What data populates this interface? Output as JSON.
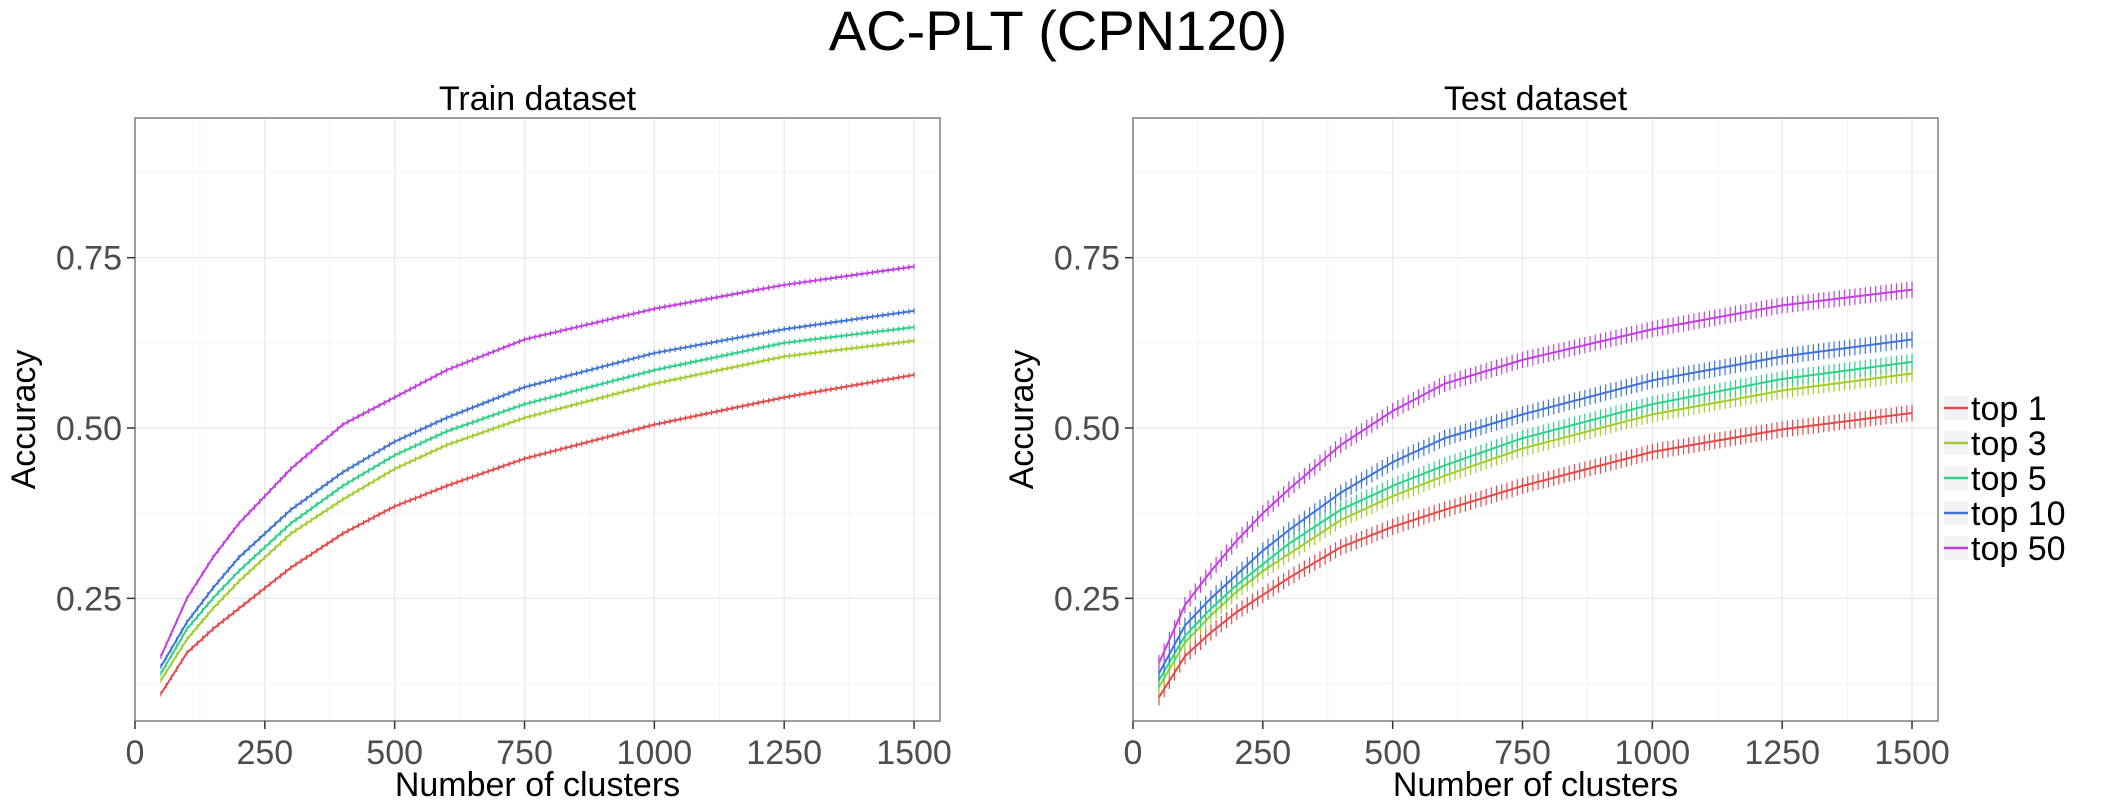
{
  "title": "AC-PLT (CPN120)",
  "colors": {
    "top 1": "#E34A4A",
    "top 3": "#A3CC2E",
    "top 5": "#2ED08A",
    "top 10": "#3F74D6",
    "top 50": "#C240E0",
    "grid": "#ebebeb",
    "panel_border": "#7f7f7f"
  },
  "legend": {
    "placement": "right",
    "items": [
      "top 1",
      "top 3",
      "top 5",
      "top 10",
      "top 50"
    ]
  },
  "chart_data": [
    {
      "type": "line",
      "panel_title": "Train dataset",
      "xlabel": "Number of clusters",
      "ylabel": "Accuracy",
      "xlim": [
        0,
        1550
      ],
      "ylim": [
        0.07,
        0.955
      ],
      "x_ticks": [
        0,
        250,
        500,
        750,
        1000,
        1250,
        1500
      ],
      "y_ticks": [
        0.25,
        0.5,
        0.75
      ],
      "x_tick_labels": [
        "0",
        "250",
        "500",
        "750",
        "1000",
        "1250",
        "1500"
      ],
      "y_tick_labels": [
        "0.25",
        "0.50",
        "0.75"
      ],
      "grid": true,
      "error_bars": true,
      "x": [
        50,
        100,
        150,
        200,
        250,
        300,
        400,
        500,
        600,
        750,
        1000,
        1250,
        1500
      ],
      "series": [
        {
          "name": "top 1",
          "values": [
            0.11,
            0.17,
            0.205,
            0.235,
            0.265,
            0.295,
            0.345,
            0.385,
            0.415,
            0.455,
            0.505,
            0.545,
            0.578
          ]
        },
        {
          "name": "top 3",
          "values": [
            0.13,
            0.19,
            0.235,
            0.275,
            0.31,
            0.345,
            0.395,
            0.44,
            0.475,
            0.515,
            0.565,
            0.605,
            0.628
          ]
        },
        {
          "name": "top 5",
          "values": [
            0.14,
            0.205,
            0.25,
            0.29,
            0.325,
            0.36,
            0.415,
            0.46,
            0.495,
            0.535,
            0.585,
            0.625,
            0.648
          ]
        },
        {
          "name": "top 10",
          "values": [
            0.15,
            0.215,
            0.265,
            0.31,
            0.345,
            0.38,
            0.435,
            0.48,
            0.515,
            0.56,
            0.61,
            0.645,
            0.672
          ]
        },
        {
          "name": "top 50",
          "values": [
            0.165,
            0.25,
            0.31,
            0.36,
            0.4,
            0.44,
            0.505,
            0.545,
            0.585,
            0.63,
            0.675,
            0.71,
            0.737
          ]
        }
      ]
    },
    {
      "type": "line",
      "panel_title": "Test dataset",
      "xlabel": "Number of clusters",
      "ylabel": "Accuracy",
      "xlim": [
        0,
        1550
      ],
      "ylim": [
        0.07,
        0.955
      ],
      "x_ticks": [
        0,
        250,
        500,
        750,
        1000,
        1250,
        1500
      ],
      "y_ticks": [
        0.25,
        0.5,
        0.75
      ],
      "x_tick_labels": [
        "0",
        "250",
        "500",
        "750",
        "1000",
        "1250",
        "1500"
      ],
      "y_tick_labels": [
        "0.25",
        "0.50",
        "0.75"
      ],
      "grid": true,
      "error_bars": true,
      "x": [
        50,
        100,
        150,
        200,
        250,
        300,
        400,
        500,
        600,
        750,
        1000,
        1250,
        1500
      ],
      "series": [
        {
          "name": "top 1",
          "values": [
            0.105,
            0.165,
            0.2,
            0.23,
            0.255,
            0.28,
            0.325,
            0.355,
            0.38,
            0.415,
            0.465,
            0.498,
            0.522
          ]
        },
        {
          "name": "top 3",
          "values": [
            0.12,
            0.185,
            0.225,
            0.26,
            0.29,
            0.315,
            0.365,
            0.4,
            0.43,
            0.47,
            0.52,
            0.555,
            0.58
          ]
        },
        {
          "name": "top 5",
          "values": [
            0.13,
            0.195,
            0.235,
            0.27,
            0.3,
            0.33,
            0.38,
            0.415,
            0.445,
            0.485,
            0.535,
            0.572,
            0.597
          ]
        },
        {
          "name": "top 10",
          "values": [
            0.14,
            0.21,
            0.25,
            0.285,
            0.32,
            0.35,
            0.405,
            0.45,
            0.485,
            0.52,
            0.57,
            0.605,
            0.63
          ]
        },
        {
          "name": "top 50",
          "values": [
            0.155,
            0.24,
            0.29,
            0.335,
            0.375,
            0.41,
            0.475,
            0.525,
            0.565,
            0.6,
            0.645,
            0.68,
            0.703
          ]
        }
      ]
    }
  ]
}
